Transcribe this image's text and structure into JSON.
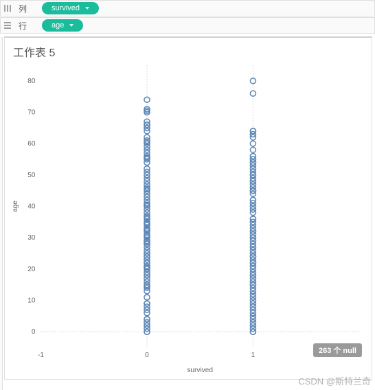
{
  "shelves": {
    "columns": {
      "label": "列",
      "pill": "survived"
    },
    "rows": {
      "label": "行",
      "pill": "age"
    }
  },
  "pill_bg_color": "#1abc9c",
  "worksheet": {
    "title": "工作表 5"
  },
  "null_badge": "263 个 null",
  "watermark": "CSDN @斯特兰奇",
  "chart": {
    "type": "scatter-strip",
    "x_label": "survived",
    "y_label": "age",
    "xlim": [
      -1,
      2
    ],
    "xtick_step": 1,
    "ylim": [
      -5,
      85
    ],
    "ytick_step": 10,
    "ytick_min": 0,
    "ytick_max": 80,
    "background_color": "#ffffff",
    "grid_color": "#d8d8d8",
    "zero_line_color": "#cfcfcf",
    "marker_color": "#5b86b5",
    "marker_stroke_width": 1.5,
    "marker_radius": 4,
    "marker_fill_opacity": 0,
    "axis_text_color": "#666666",
    "label_fontsize": 10,
    "data": {
      "0": [
        0,
        0,
        1,
        2,
        2,
        3,
        4,
        4,
        6,
        7,
        8,
        9,
        9,
        11,
        13,
        14,
        14.5,
        15,
        16,
        17,
        18,
        18,
        19,
        19,
        20,
        20.5,
        21,
        21,
        22,
        22,
        23,
        23,
        24,
        24,
        25,
        25,
        26,
        27,
        28,
        28,
        28.5,
        29,
        29,
        30,
        30.5,
        31,
        32,
        32.5,
        33,
        34,
        34.5,
        35,
        36,
        36.5,
        37,
        38,
        39,
        40,
        40.5,
        41,
        42,
        43,
        44,
        45,
        45.5,
        46,
        47,
        48,
        49,
        50,
        51,
        52,
        54,
        55,
        55.5,
        56,
        57,
        58,
        59,
        60,
        60.5,
        61,
        62,
        64,
        65,
        65,
        66,
        66,
        66,
        67,
        70,
        70.5,
        71,
        74
      ],
      "1": [
        0,
        0,
        1,
        2,
        3,
        4,
        5,
        6,
        7,
        8,
        9,
        10,
        11,
        12,
        13,
        14,
        15,
        15,
        16,
        17,
        18,
        18,
        19,
        20,
        21,
        21,
        22,
        22,
        23,
        24,
        24,
        25,
        26,
        27,
        27,
        28,
        29,
        30,
        30,
        31,
        32,
        32,
        33,
        34,
        35,
        35,
        36,
        36,
        38,
        39,
        40,
        41,
        42,
        42,
        44,
        45,
        45,
        45,
        46,
        47,
        48,
        48,
        49,
        50,
        50,
        51,
        52,
        53,
        54,
        54,
        55,
        55,
        56,
        56,
        58,
        60,
        62,
        63,
        63,
        64,
        64,
        76,
        80
      ]
    }
  }
}
